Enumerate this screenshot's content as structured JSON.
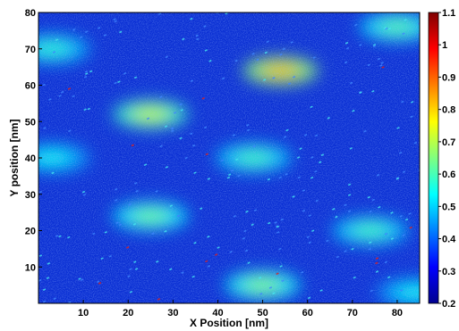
{
  "chart_data": {
    "type": "heatmap",
    "title": "",
    "xlabel": "X Position [nm]",
    "ylabel": "Y position [nm]",
    "xlim": [
      0,
      85
    ],
    "ylim": [
      0,
      80
    ],
    "x_ticks": [
      10,
      20,
      30,
      40,
      50,
      60,
      70,
      80
    ],
    "y_ticks": [
      10,
      20,
      30,
      40,
      50,
      60,
      70,
      80
    ],
    "colorbar": {
      "colormap": "jet",
      "range": [
        0.2,
        1.1
      ],
      "ticks": [
        0.2,
        0.3,
        0.4,
        0.5,
        0.6,
        0.7,
        0.8,
        0.9,
        1,
        1.1
      ]
    },
    "background_level": 0.3,
    "hotspots": [
      {
        "x": 80,
        "y": 76,
        "level": 0.62
      },
      {
        "x": 3,
        "y": 70,
        "level": 0.58
      },
      {
        "x": 54,
        "y": 64,
        "level": 0.82
      },
      {
        "x": 25,
        "y": 52,
        "level": 0.72
      },
      {
        "x": 48,
        "y": 40,
        "level": 0.6
      },
      {
        "x": 3,
        "y": 40,
        "level": 0.55
      },
      {
        "x": 25,
        "y": 24,
        "level": 0.64
      },
      {
        "x": 74,
        "y": 20,
        "level": 0.6
      },
      {
        "x": 50,
        "y": 5,
        "level": 0.66
      },
      {
        "x": 84,
        "y": 3,
        "level": 0.55
      }
    ],
    "grid": false,
    "colors": {
      "axis": "#000000",
      "background": "#ffffff"
    }
  }
}
